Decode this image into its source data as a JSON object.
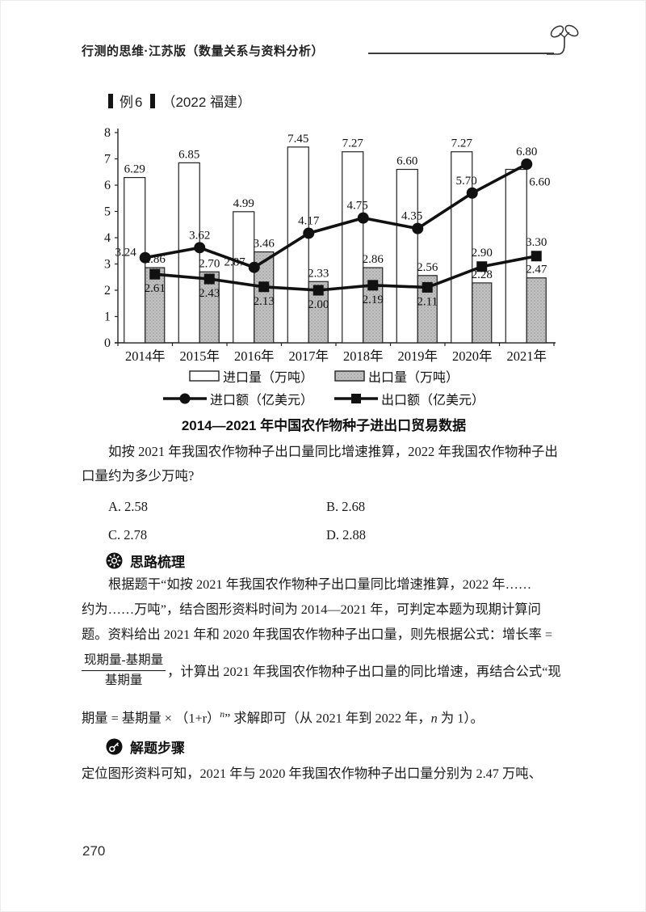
{
  "page": {
    "number": "270"
  },
  "header": {
    "title": "行测的思维·江苏版（数量关系与资料分析）"
  },
  "example": {
    "label": "例6",
    "source": "（2022 福建）"
  },
  "chart_data": {
    "type": "combo",
    "title": "2014—2021 年中国农作物种子进出口贸易数据",
    "categories": [
      "2014年",
      "2015年",
      "2016年",
      "2017年",
      "2018年",
      "2019年",
      "2020年",
      "2021年"
    ],
    "series": [
      {
        "name": "进口量（万吨）",
        "type": "bar",
        "style": "white",
        "values": [
          6.29,
          6.85,
          4.99,
          7.45,
          7.27,
          6.6,
          7.27,
          6.6
        ],
        "label_pos": [
          "above",
          "above",
          "above",
          "above",
          "above",
          "above",
          "above",
          "inside-right"
        ]
      },
      {
        "name": "出口量（万吨）",
        "type": "bar",
        "style": "gray",
        "values": [
          2.86,
          2.7,
          3.46,
          2.33,
          2.86,
          2.56,
          2.28,
          2.47
        ],
        "label_pos": [
          "above",
          "above",
          "above",
          "above",
          "above",
          "above",
          "above",
          "above"
        ]
      },
      {
        "name": "进口额（亿美元）",
        "type": "line",
        "marker": "circle",
        "values": [
          3.24,
          3.62,
          2.87,
          4.17,
          4.75,
          4.35,
          5.7,
          6.8
        ],
        "label_pos": [
          "left",
          "above",
          "left",
          "above",
          "above-left",
          "above-left",
          "above-left",
          "above"
        ]
      },
      {
        "name": "出口额（亿美元）",
        "type": "line",
        "marker": "square",
        "values": [
          2.61,
          2.43,
          2.13,
          2.0,
          2.19,
          2.11,
          2.9,
          3.3
        ],
        "label_pos": [
          "below",
          "below",
          "below",
          "below",
          "below",
          "below",
          "above",
          "above"
        ]
      }
    ],
    "ylim": [
      0,
      8
    ],
    "ytick_step": 1,
    "grid": false,
    "legend_position": "bottom",
    "colors": {
      "bar_white": "#ffffff",
      "bar_gray": "#c2c2c2",
      "line": "#111111",
      "axis": "#222222"
    }
  },
  "question": {
    "lines": [
      "如按 2021 年我国农作物种子出口量同比增速推算，2022 年我国农作物种子出",
      "口量约为多少万吨?"
    ],
    "options": [
      {
        "key": "A.",
        "value": "2.58"
      },
      {
        "key": "B.",
        "value": "2.68"
      },
      {
        "key": "C.",
        "value": "2.78"
      },
      {
        "key": "D.",
        "value": "2.88"
      }
    ]
  },
  "section_idea": {
    "title": "思路梳理",
    "lines": [
      "根据题干“如按 2021 年我国农作物种子出口量同比增速推算，2022 年……",
      "约为……万吨”，结合图形资料时间为 2014—2021 年，可判定本题为现期计算问",
      "题。资料给出 2021 年和 2020 年我国农作物种子出口量，则先根据公式：增长率 ="
    ],
    "formula": {
      "numerator": "现期量-基期量",
      "denominator": "基期量",
      "after": "，计算出 2021 年我国农作物种子出口量的同比增速，再结合公式“现",
      "line2_pre": "期量 = 基期量 × （1+r）",
      "line2_sup": "n",
      "line2_mid": "” 求解即可（从 2021 年到 2022 年，",
      "line2_n": "n",
      "line2_post": " 为 1）。"
    }
  },
  "section_steps": {
    "title": "解题步骤",
    "line": "定位图形资料可知，2021 年与 2020 年我国农作物种子出口量分别为 2.47 万吨、"
  }
}
